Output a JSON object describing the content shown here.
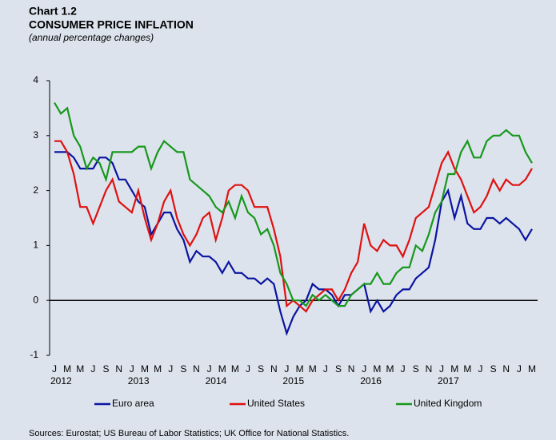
{
  "chart_data": {
    "type": "line",
    "title": "Chart 1.2",
    "subtitle": "CONSUMER PRICE INFLATION",
    "note": "(annual percentage changes)",
    "source": "Sources: Eurostat; US Bureau of Labor Statistics; UK Office for National Statistics.",
    "categories": [
      "J",
      null,
      "M",
      null,
      "M",
      null,
      "J",
      null,
      "S",
      null,
      "N",
      null,
      "J",
      null,
      "M",
      null,
      "M",
      null,
      "J",
      null,
      "S",
      null,
      "N",
      null,
      "J",
      null,
      "M",
      null,
      "M",
      null,
      "J",
      null,
      "S",
      null,
      "N",
      null,
      "J",
      null,
      "M",
      null,
      "M",
      null,
      "J",
      null,
      "S",
      null,
      "N",
      null,
      "J",
      null,
      "M",
      null,
      "M",
      null,
      "J",
      null,
      "S",
      null,
      "N",
      null,
      "J",
      null,
      "M",
      null,
      "M",
      null,
      "J",
      null,
      "S",
      null,
      "N",
      null,
      "J",
      null,
      "M"
    ],
    "years": [
      "2012",
      "2013",
      "2014",
      "2015",
      "2016",
      "2017"
    ],
    "ylim": [
      -1,
      4
    ],
    "yticks": [
      -1,
      0,
      1,
      2,
      3,
      4
    ],
    "series": [
      {
        "name": "Euro area",
        "color": "#0a14a0",
        "values": [
          2.7,
          2.7,
          2.7,
          2.6,
          2.4,
          2.4,
          2.4,
          2.6,
          2.6,
          2.5,
          2.2,
          2.2,
          2.0,
          1.8,
          1.7,
          1.2,
          1.4,
          1.6,
          1.6,
          1.3,
          1.1,
          0.7,
          0.9,
          0.8,
          0.8,
          0.7,
          0.5,
          0.7,
          0.5,
          0.5,
          0.4,
          0.4,
          0.3,
          0.4,
          0.3,
          -0.2,
          -0.6,
          -0.3,
          -0.1,
          0.0,
          0.3,
          0.2,
          0.2,
          0.1,
          -0.1,
          0.1,
          0.1,
          0.2,
          0.3,
          -0.2,
          0.0,
          -0.2,
          -0.1,
          0.1,
          0.2,
          0.2,
          0.4,
          0.5,
          0.6,
          1.1,
          1.8,
          2.0,
          1.5,
          1.9,
          1.4,
          1.3,
          1.3,
          1.5,
          1.5,
          1.4,
          1.5,
          1.4,
          1.3,
          1.1,
          1.3
        ]
      },
      {
        "name": "United States",
        "color": "#e01010",
        "values": [
          2.9,
          2.9,
          2.7,
          2.3,
          1.7,
          1.7,
          1.4,
          1.7,
          2.0,
          2.2,
          1.8,
          1.7,
          1.6,
          2.0,
          1.5,
          1.1,
          1.4,
          1.8,
          2.0,
          1.5,
          1.2,
          1.0,
          1.2,
          1.5,
          1.6,
          1.1,
          1.5,
          2.0,
          2.1,
          2.1,
          2.0,
          1.7,
          1.7,
          1.7,
          1.3,
          0.8,
          -0.1,
          0.0,
          -0.1,
          -0.2,
          0.0,
          0.1,
          0.2,
          0.2,
          0.0,
          0.2,
          0.5,
          0.7,
          1.4,
          1.0,
          0.9,
          1.1,
          1.0,
          1.0,
          0.8,
          1.1,
          1.5,
          1.6,
          1.7,
          2.1,
          2.5,
          2.7,
          2.4,
          2.2,
          1.9,
          1.6,
          1.7,
          1.9,
          2.2,
          2.0,
          2.2,
          2.1,
          2.1,
          2.2,
          2.4
        ]
      },
      {
        "name": "United Kingdom",
        "color": "#17981c",
        "values": [
          3.6,
          3.4,
          3.5,
          3.0,
          2.8,
          2.4,
          2.6,
          2.5,
          2.2,
          2.7,
          2.7,
          2.7,
          2.7,
          2.8,
          2.8,
          2.4,
          2.7,
          2.9,
          2.8,
          2.7,
          2.7,
          2.2,
          2.1,
          2.0,
          1.9,
          1.7,
          1.6,
          1.8,
          1.5,
          1.9,
          1.6,
          1.5,
          1.2,
          1.3,
          1.0,
          0.5,
          0.3,
          0.0,
          0.0,
          -0.1,
          0.1,
          0.0,
          0.1,
          0.0,
          -0.1,
          -0.1,
          0.1,
          0.2,
          0.3,
          0.3,
          0.5,
          0.3,
          0.3,
          0.5,
          0.6,
          0.6,
          1.0,
          0.9,
          1.2,
          1.6,
          1.8,
          2.3,
          2.3,
          2.7,
          2.9,
          2.6,
          2.6,
          2.9,
          3.0,
          3.0,
          3.1,
          3.0,
          3.0,
          2.7,
          2.5
        ]
      }
    ]
  }
}
